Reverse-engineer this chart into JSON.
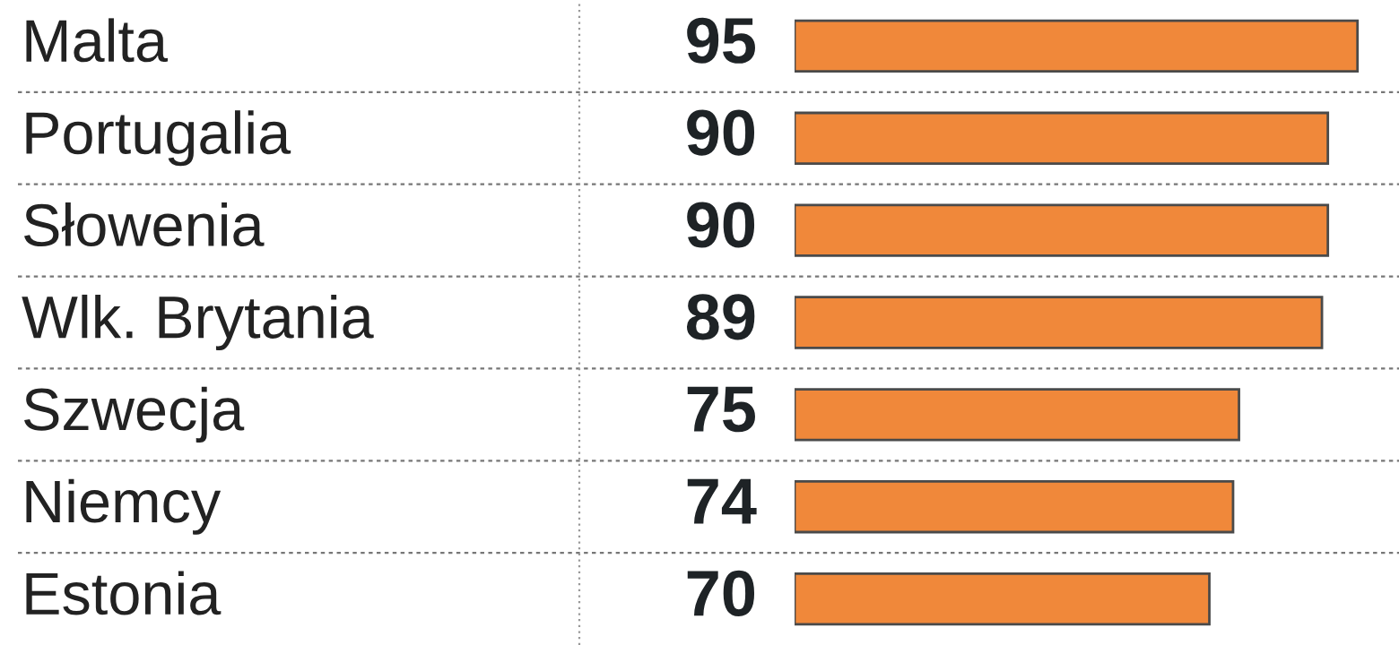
{
  "chart_data": {
    "type": "bar",
    "orientation": "horizontal",
    "categories": [
      "Malta",
      "Portugalia",
      "Słowenia",
      "Wlk. Brytania",
      "Szwecja",
      "Niemcy",
      "Estonia"
    ],
    "values": [
      95,
      90,
      90,
      89,
      75,
      74,
      70
    ],
    "color": "#f0883a",
    "data_labels": true
  }
}
